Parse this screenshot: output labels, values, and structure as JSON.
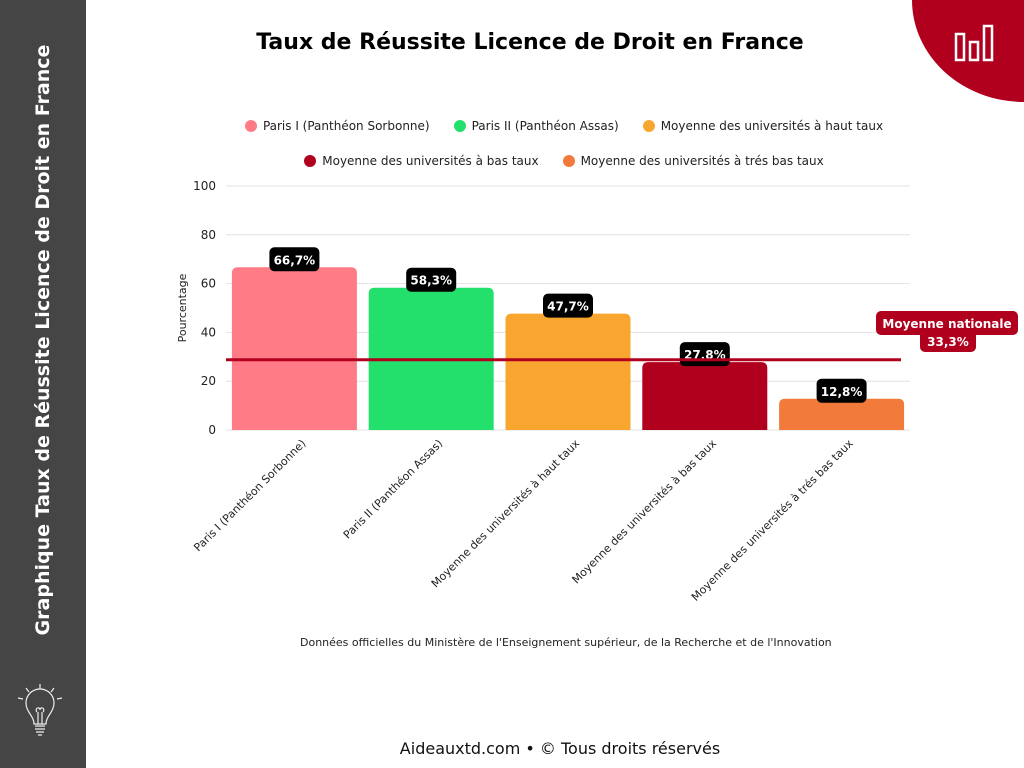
{
  "sidebar": {
    "title": "Graphique Taux de Réussite Licence de Droit en France",
    "icon": "lightbulb-icon"
  },
  "corner_icon": "bar-chart-icon",
  "footer": "Aideauxtd.com • © Tous droits réservés",
  "source": "Données officielles du Ministère de l'Enseignement supérieur, de la Recherche et de l'Innovation",
  "chart_data": {
    "type": "bar",
    "title": "Taux de Réussite Licence de Droit en France",
    "ylabel": "Pourcentage",
    "xlabel": "",
    "ylim": [
      0,
      100
    ],
    "yticks": [
      "0",
      "20",
      "40",
      "60",
      "80",
      "100"
    ],
    "grid": true,
    "legend_position": "top",
    "categories": [
      "Paris I (Panthéon Sorbonne)",
      "Paris II (Panthéon Assas)",
      "Moyenne des universités à haut taux",
      "Moyenne des universités à bas taux",
      "Moyenne des universités à trés bas taux"
    ],
    "values": [
      66.7,
      58.3,
      47.7,
      27.8,
      12.8
    ],
    "data_labels": [
      "66,7%",
      "58,3%",
      "47,7%",
      "27,8%",
      "12,8%"
    ],
    "colors": [
      "#ff7b86",
      "#22e06b",
      "#f8a630",
      "#b0001e",
      "#f27b3c"
    ],
    "reference_line": {
      "label": "Moyenne nationale",
      "value_label": "33,3%",
      "value": 33.3,
      "color": "#b0001e"
    }
  }
}
